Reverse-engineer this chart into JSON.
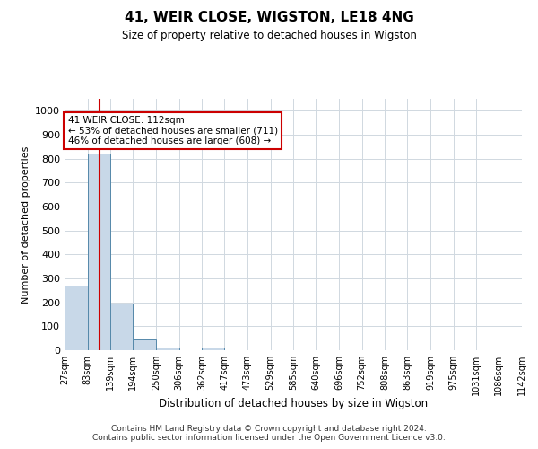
{
  "title": "41, WEIR CLOSE, WIGSTON, LE18 4NG",
  "subtitle": "Size of property relative to detached houses in Wigston",
  "xlabel": "Distribution of detached houses by size in Wigston",
  "ylabel": "Number of detached properties",
  "footer_line1": "Contains HM Land Registry data © Crown copyright and database right 2024.",
  "footer_line2": "Contains public sector information licensed under the Open Government Licence v3.0.",
  "annotation_text_line1": "41 WEIR CLOSE: 112sqm",
  "annotation_text_line2": "← 53% of detached houses are smaller (711)",
  "annotation_text_line3": "46% of detached houses are larger (608) →",
  "bin_edges": [
    27,
    83,
    139,
    194,
    250,
    306,
    362,
    417,
    473,
    529,
    585,
    640,
    696,
    752,
    808,
    863,
    919,
    975,
    1031,
    1086,
    1142
  ],
  "bin_labels": [
    "27sqm",
    "83sqm",
    "139sqm",
    "194sqm",
    "250sqm",
    "306sqm",
    "362sqm",
    "417sqm",
    "473sqm",
    "529sqm",
    "585sqm",
    "640sqm",
    "696sqm",
    "752sqm",
    "808sqm",
    "863sqm",
    "919sqm",
    "975sqm",
    "1031sqm",
    "1086sqm",
    "1142sqm"
  ],
  "bar_heights": [
    270,
    820,
    195,
    45,
    10,
    0,
    10,
    0,
    0,
    0,
    0,
    0,
    0,
    0,
    0,
    0,
    0,
    0,
    0,
    0
  ],
  "bar_color": "#c8d8e8",
  "bar_edge_color": "#5588aa",
  "vline_color": "#cc0000",
  "vline_x": 112,
  "ylim": [
    0,
    1050
  ],
  "yticks": [
    0,
    100,
    200,
    300,
    400,
    500,
    600,
    700,
    800,
    900,
    1000
  ],
  "grid_color": "#d0d8e0",
  "annotation_box_color": "#cc0000",
  "background_color": "#ffffff"
}
